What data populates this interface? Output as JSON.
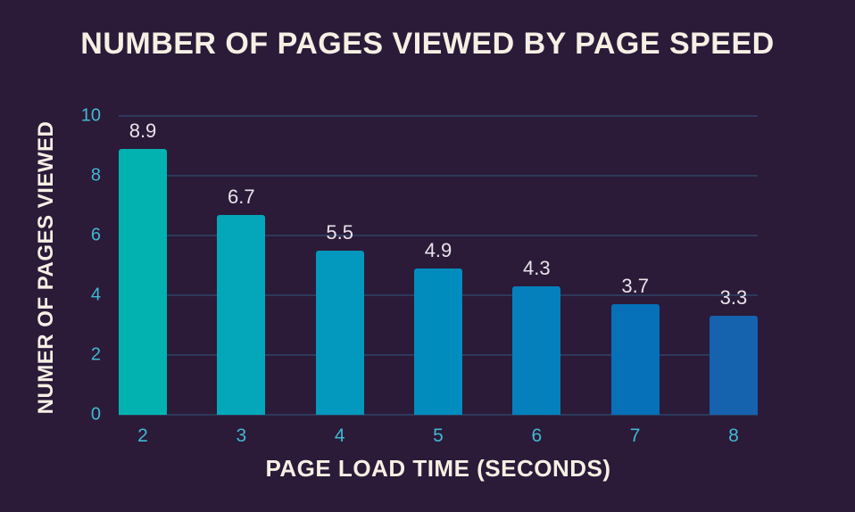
{
  "chart_data": {
    "type": "bar",
    "title": "NUMBER OF PAGES VIEWED BY PAGE SPEED",
    "xlabel": "PAGE LOAD TIME (SECONDS)",
    "ylabel": "NUMER OF PAGES VIEWED",
    "categories": [
      "2",
      "3",
      "4",
      "5",
      "6",
      "7",
      "8"
    ],
    "values": [
      8.9,
      6.7,
      5.5,
      4.9,
      4.3,
      3.7,
      3.3
    ],
    "value_labels": [
      "8.9",
      "6.7",
      "5.5",
      "4.9",
      "4.3",
      "3.7",
      "3.3"
    ],
    "bar_colors": [
      "#02b2b1",
      "#04a6ba",
      "#0398be",
      "#018cbe",
      "#0480bd",
      "#0670b8",
      "#1562ae"
    ],
    "ylim": [
      0,
      10
    ],
    "yticks": [
      0,
      2,
      4,
      6,
      8,
      10
    ],
    "grid": true,
    "legend": null,
    "colors": {
      "background": "#2b1a38",
      "title_text": "#f6f0e4",
      "tick_text": "#41b9d2",
      "value_label_text": "#e8e3ea",
      "gridline": "#2d3a5a"
    }
  }
}
